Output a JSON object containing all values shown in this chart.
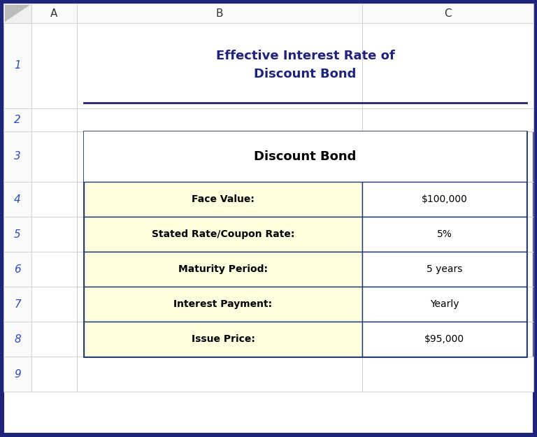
{
  "title_line1": "Effective Interest Rate of",
  "title_line2": "Discount Bond",
  "table_header": "Discount Bond",
  "rows": [
    {
      "label": "Face Value:",
      "value": "$100,000"
    },
    {
      "label": "Stated Rate/Coupon Rate:",
      "value": "5%"
    },
    {
      "label": "Maturity Period:",
      "value": "5 years"
    },
    {
      "label": "Interest Payment:",
      "value": "Yearly"
    },
    {
      "label": "Issue Price:",
      "value": "$95,000"
    }
  ],
  "outer_border_color": "#1F237A",
  "table_border_color": "#1F3A6E",
  "row_bg": "#FFFFE0",
  "title_color": "#1F237A",
  "row_num_color": "#2E4DAE",
  "col_label_color": "#333333",
  "grid_color": "#C8C8C8",
  "outer_bg": "#1F237A",
  "inner_bg": "#FFFFFF",
  "col_header_bg": "#FAFAFA",
  "row_num_bg": "#FAFAFA",
  "separator_color": "#1F237A",
  "title_fontsize": 13,
  "table_header_fontsize": 13,
  "row_fontsize": 10,
  "col_label_fontsize": 11,
  "row_num_fontsize": 11
}
